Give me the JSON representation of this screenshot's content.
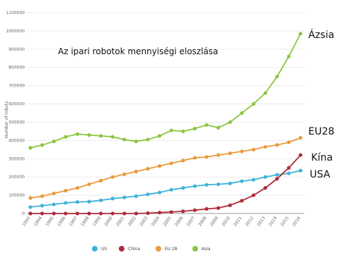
{
  "chart_data": {
    "type": "line",
    "title": "Az ipari robotok mennyiségi eloszlása",
    "ylabel": "Number of robots",
    "ylim": [
      0,
      1100000
    ],
    "yticks": [
      0,
      100000,
      200000,
      300000,
      400000,
      500000,
      600000,
      700000,
      800000,
      900000,
      1000000,
      1100000
    ],
    "x": [
      1993,
      1994,
      1995,
      1996,
      1997,
      1998,
      1999,
      2000,
      2001,
      2002,
      2003,
      2004,
      2005,
      2006,
      2007,
      2008,
      2009,
      2010,
      2011,
      2012,
      2013,
      2014,
      2015,
      2016
    ],
    "grid": true,
    "legend_position": "bottom",
    "series": [
      {
        "name": "US",
        "label": "USA",
        "color": "#3fb3d9",
        "values": [
          35000,
          43000,
          50000,
          58000,
          63000,
          65000,
          72000,
          82000,
          88000,
          95000,
          105000,
          115000,
          130000,
          140000,
          150000,
          157000,
          160000,
          165000,
          177000,
          185000,
          200000,
          212000,
          220000,
          235000
        ]
      },
      {
        "name": "China",
        "label": "Kína",
        "color": "#b02a3a",
        "values": [
          0,
          0,
          0,
          0,
          0,
          0,
          0,
          0,
          0,
          0,
          2000,
          5000,
          8000,
          12000,
          18000,
          25000,
          30000,
          45000,
          70000,
          100000,
          140000,
          190000,
          250000,
          320000
        ]
      },
      {
        "name": "EU 28",
        "label": "EU28",
        "color": "#e99a3d",
        "values": [
          85000,
          95000,
          110000,
          125000,
          140000,
          160000,
          180000,
          200000,
          215000,
          230000,
          245000,
          260000,
          275000,
          290000,
          305000,
          310000,
          320000,
          330000,
          340000,
          350000,
          365000,
          375000,
          390000,
          415000
        ]
      },
      {
        "name": "Asia",
        "label": "Ázsia",
        "color": "#8cc63f",
        "values": [
          360000,
          375000,
          395000,
          420000,
          435000,
          430000,
          425000,
          420000,
          405000,
          395000,
          405000,
          425000,
          455000,
          450000,
          465000,
          485000,
          470000,
          500000,
          550000,
          600000,
          660000,
          750000,
          860000,
          985000
        ]
      }
    ]
  }
}
